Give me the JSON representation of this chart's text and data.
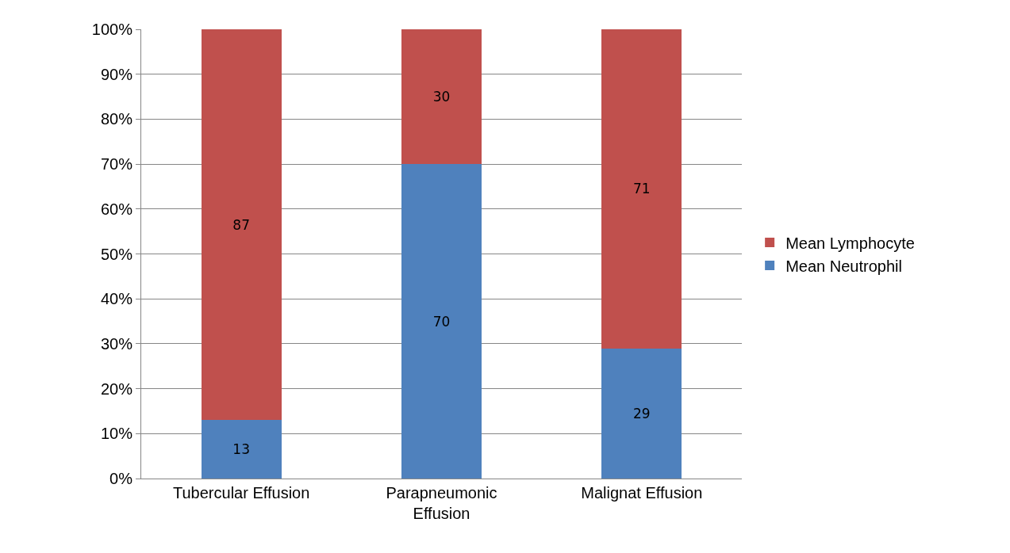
{
  "chart_data": {
    "type": "bar",
    "stacked": true,
    "categories": [
      "Tubercular Effusion",
      "Parapneumonic Effusion",
      "Malignat Effusion"
    ],
    "series": [
      {
        "name": "Mean Neutrophil",
        "color": "#4f81bd",
        "values": [
          13,
          70,
          29
        ]
      },
      {
        "name": "Mean Lymphocyte",
        "color": "#c0504d",
        "values": [
          87,
          30,
          71
        ]
      }
    ],
    "ylim": [
      0,
      100
    ],
    "yticks": [
      {
        "value": 0,
        "label": "0%"
      },
      {
        "value": 10,
        "label": "10%"
      },
      {
        "value": 20,
        "label": "20%"
      },
      {
        "value": 30,
        "label": "30%"
      },
      {
        "value": 40,
        "label": "40%"
      },
      {
        "value": 50,
        "label": "50%"
      },
      {
        "value": 60,
        "label": "60%"
      },
      {
        "value": 70,
        "label": "70%"
      },
      {
        "value": 80,
        "label": "80%"
      },
      {
        "value": 90,
        "label": "90%"
      },
      {
        "value": 100,
        "label": "100%"
      }
    ],
    "grid": "y",
    "legend": "right",
    "data_labels": true
  }
}
